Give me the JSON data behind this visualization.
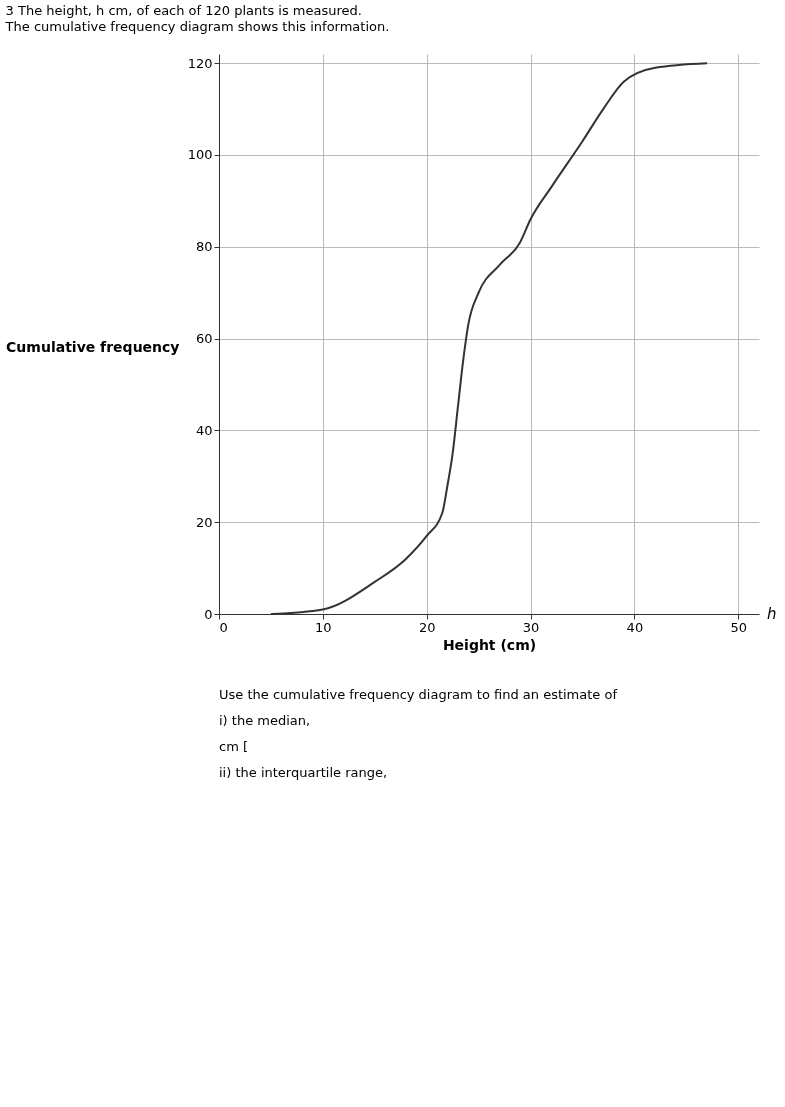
{
  "chart_data": {
    "type": "line",
    "title": "3 The height, h cm, of each of 120 plants is measured.",
    "subtitle": "The cumulative frequency diagram shows this information.",
    "xlabel": "Height (cm)",
    "ylabel": "Cumulative frequency",
    "x": [
      5,
      10,
      15,
      18,
      20,
      21.5,
      22,
      22.5,
      23,
      23.5,
      24,
      25,
      27,
      29,
      30,
      32,
      35,
      37,
      39,
      42,
      47
    ],
    "values": [
      0,
      1,
      7,
      12,
      17,
      22,
      28,
      35,
      45,
      55,
      63,
      70,
      76,
      81,
      86,
      93,
      103,
      110,
      116,
      119,
      120
    ],
    "color": "#333333",
    "xlim": [
      0,
      52
    ],
    "ylim": [
      0,
      122
    ],
    "xticks": [
      0,
      10,
      20,
      30,
      40,
      50
    ],
    "yticks": [
      0,
      20,
      40,
      60,
      80,
      100,
      120
    ],
    "grid": true,
    "marker": "none",
    "line_style": "solid",
    "annotations": [
      "h",
      "Use the cumulative frequency diagram to find an estimate of",
      "i) the median,",
      "cm [",
      "ii) the interquartile range,"
    ]
  }
}
